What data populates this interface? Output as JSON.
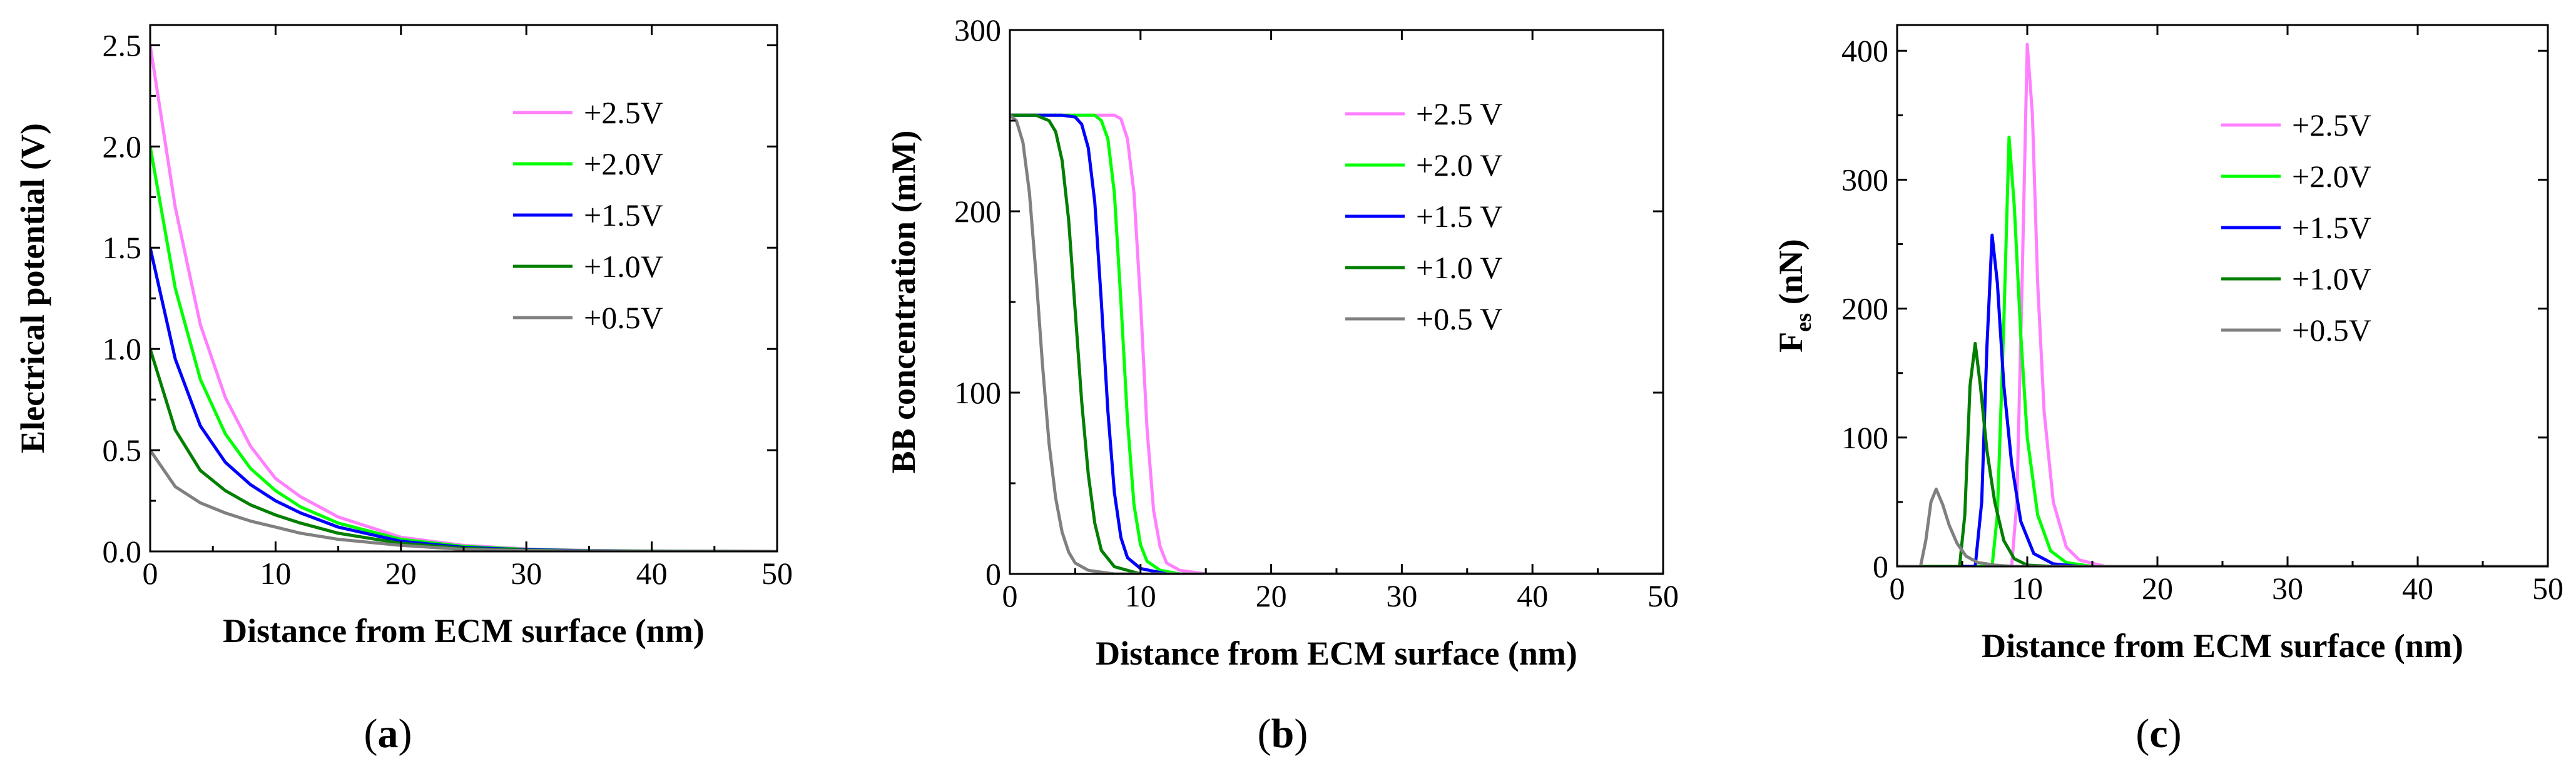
{
  "chart_data": [
    {
      "type": "line",
      "title": "",
      "caption": "a",
      "xlabel": "Distance from ECM surface (nm)",
      "ylabel": "Electrical potential (V)",
      "ylabel_parts": {
        "main": "Electrical potential (V)",
        "sub": ""
      },
      "xlim": [
        0,
        50
      ],
      "ylim": [
        0,
        2.6
      ],
      "xticks": [
        0,
        10,
        20,
        30,
        40,
        50
      ],
      "yticks": [
        0.0,
        0.5,
        1.0,
        1.5,
        2.0,
        2.5
      ],
      "ytick_labels": [
        "0.0",
        "0.5",
        "1.0",
        "1.5",
        "2.0",
        "2.5"
      ],
      "legend_position": "top-right",
      "series": [
        {
          "name": "+2.5V",
          "color": "#ff7fff",
          "x": [
            0,
            2,
            4,
            6,
            8,
            10,
            12,
            15,
            20,
            25,
            30,
            35,
            40,
            50
          ],
          "y": [
            2.5,
            1.7,
            1.12,
            0.76,
            0.52,
            0.36,
            0.27,
            0.17,
            0.07,
            0.03,
            0.012,
            0.005,
            0.002,
            0.0
          ]
        },
        {
          "name": "+2.0V",
          "color": "#00ff00",
          "x": [
            0,
            2,
            4,
            6,
            8,
            10,
            12,
            15,
            20,
            25,
            30,
            35,
            40,
            50
          ],
          "y": [
            2.0,
            1.3,
            0.85,
            0.58,
            0.41,
            0.3,
            0.22,
            0.14,
            0.06,
            0.025,
            0.01,
            0.004,
            0.002,
            0.0
          ]
        },
        {
          "name": "+1.5V",
          "color": "#0000ff",
          "x": [
            0,
            2,
            4,
            6,
            8,
            10,
            12,
            15,
            20,
            25,
            30,
            35,
            40,
            50
          ],
          "y": [
            1.5,
            0.95,
            0.62,
            0.44,
            0.33,
            0.25,
            0.19,
            0.12,
            0.05,
            0.02,
            0.008,
            0.003,
            0.001,
            0.0
          ]
        },
        {
          "name": "+1.0V",
          "color": "#007f00",
          "x": [
            0,
            2,
            4,
            6,
            8,
            10,
            12,
            15,
            20,
            25,
            30,
            35,
            40,
            50
          ],
          "y": [
            1.0,
            0.6,
            0.4,
            0.3,
            0.23,
            0.18,
            0.14,
            0.09,
            0.04,
            0.015,
            0.006,
            0.002,
            0.001,
            0.0
          ]
        },
        {
          "name": "+0.5V",
          "color": "#808080",
          "x": [
            0,
            2,
            4,
            6,
            8,
            10,
            12,
            15,
            20,
            25,
            30,
            35,
            40,
            50
          ],
          "y": [
            0.5,
            0.32,
            0.24,
            0.19,
            0.15,
            0.12,
            0.09,
            0.06,
            0.03,
            0.01,
            0.004,
            0.002,
            0.001,
            0.0
          ]
        }
      ]
    },
    {
      "type": "line",
      "title": "",
      "caption": "b",
      "xlabel": "Distance from ECM surface (nm)",
      "ylabel": "BB concentration (mM)",
      "ylabel_parts": {
        "main": "BB concentration (mM)",
        "sub": ""
      },
      "xlim": [
        0,
        50
      ],
      "ylim": [
        0,
        300
      ],
      "xticks": [
        0,
        10,
        20,
        30,
        40,
        50
      ],
      "yticks": [
        0,
        100,
        200,
        300
      ],
      "ytick_labels": [
        "0",
        "100",
        "200",
        "300"
      ],
      "legend_position": "top-right",
      "series": [
        {
          "name": "+2.5 V",
          "color": "#ff7fff",
          "x": [
            0,
            5,
            8,
            8.5,
            9,
            9.5,
            10,
            10.5,
            11,
            11.5,
            12,
            13,
            15,
            20,
            50
          ],
          "y": [
            253,
            253,
            253,
            251,
            240,
            210,
            150,
            80,
            35,
            15,
            6,
            2,
            0,
            0,
            0
          ]
        },
        {
          "name": "+2.0 V",
          "color": "#00ff00",
          "x": [
            0,
            5,
            6.5,
            7,
            7.5,
            8,
            8.5,
            9,
            9.5,
            10,
            10.5,
            11.5,
            13,
            20,
            50
          ],
          "y": [
            253,
            253,
            253,
            250,
            240,
            210,
            150,
            85,
            38,
            16,
            7,
            2,
            0,
            0,
            0
          ]
        },
        {
          "name": "+1.5 V",
          "color": "#0000ff",
          "x": [
            0,
            4,
            5,
            5.5,
            6,
            6.5,
            7,
            7.5,
            8,
            8.5,
            9,
            10,
            12,
            20,
            50
          ],
          "y": [
            253,
            253,
            252,
            248,
            235,
            205,
            150,
            90,
            45,
            20,
            9,
            3,
            0,
            0,
            0
          ]
        },
        {
          "name": "+1.0 V",
          "color": "#007f00",
          "x": [
            0,
            2,
            3,
            3.5,
            4,
            4.5,
            5,
            5.5,
            6,
            6.5,
            7,
            8,
            10,
            20,
            50
          ],
          "y": [
            253,
            253,
            250,
            244,
            228,
            195,
            145,
            95,
            55,
            28,
            13,
            4,
            0,
            0,
            0
          ]
        },
        {
          "name": "+0.5 V",
          "color": "#808080",
          "x": [
            0,
            0.5,
            1,
            1.5,
            2,
            2.5,
            3,
            3.5,
            4,
            4.5,
            5,
            6,
            8,
            20,
            50
          ],
          "y": [
            253,
            250,
            238,
            210,
            165,
            115,
            72,
            42,
            23,
            12,
            6,
            2,
            0,
            0,
            0
          ]
        }
      ]
    },
    {
      "type": "line",
      "title": "",
      "caption": "c",
      "xlabel": "Distance from ECM surface (nm)",
      "ylabel": "F es (nN)",
      "ylabel_parts": {
        "main": "F",
        "sub": "es",
        "unit": "(nN)"
      },
      "xlim": [
        0,
        50
      ],
      "ylim": [
        0,
        420
      ],
      "xticks": [
        0,
        10,
        20,
        30,
        40,
        50
      ],
      "yticks": [
        0,
        100,
        200,
        300,
        400
      ],
      "ytick_labels": [
        "0",
        "100",
        "200",
        "300",
        "400"
      ],
      "legend_position": "top-right",
      "series": [
        {
          "name": "+2.5V",
          "color": "#ff7fff",
          "x": [
            0,
            8.8,
            9.2,
            9.6,
            10,
            10.4,
            10.8,
            11.3,
            12,
            13,
            14,
            16,
            20,
            50
          ],
          "y": [
            0,
            0,
            50,
            220,
            405,
            350,
            220,
            120,
            50,
            15,
            5,
            0,
            0,
            0
          ]
        },
        {
          "name": "+2.0V",
          "color": "#00ff00",
          "x": [
            0,
            7.3,
            7.7,
            8.2,
            8.6,
            9,
            9.5,
            10,
            10.8,
            11.8,
            13,
            15,
            20,
            50
          ],
          "y": [
            0,
            0,
            40,
            190,
            333,
            280,
            180,
            100,
            40,
            12,
            3,
            0,
            0,
            0
          ]
        },
        {
          "name": "+1.5V",
          "color": "#0000ff",
          "x": [
            0,
            6,
            6.5,
            6.9,
            7.3,
            7.7,
            8.2,
            8.8,
            9.5,
            10.5,
            12,
            14,
            20,
            50
          ],
          "y": [
            0,
            0,
            50,
            170,
            257,
            220,
            140,
            80,
            35,
            10,
            2,
            0,
            0,
            0
          ]
        },
        {
          "name": "+1.0V",
          "color": "#007f00",
          "x": [
            0,
            4.8,
            5.2,
            5.6,
            6,
            6.4,
            6.9,
            7.5,
            8.2,
            9,
            10,
            12,
            20,
            50
          ],
          "y": [
            0,
            0,
            40,
            140,
            173,
            140,
            90,
            50,
            20,
            6,
            1,
            0,
            0,
            0
          ]
        },
        {
          "name": "+0.5V",
          "color": "#808080",
          "x": [
            0,
            1.8,
            2.2,
            2.6,
            3,
            3.5,
            4,
            4.6,
            5.3,
            6.2,
            7.5,
            9,
            20,
            50
          ],
          "y": [
            0,
            0,
            20,
            50,
            60,
            48,
            32,
            18,
            8,
            3,
            1,
            0,
            0,
            0
          ]
        }
      ]
    }
  ]
}
